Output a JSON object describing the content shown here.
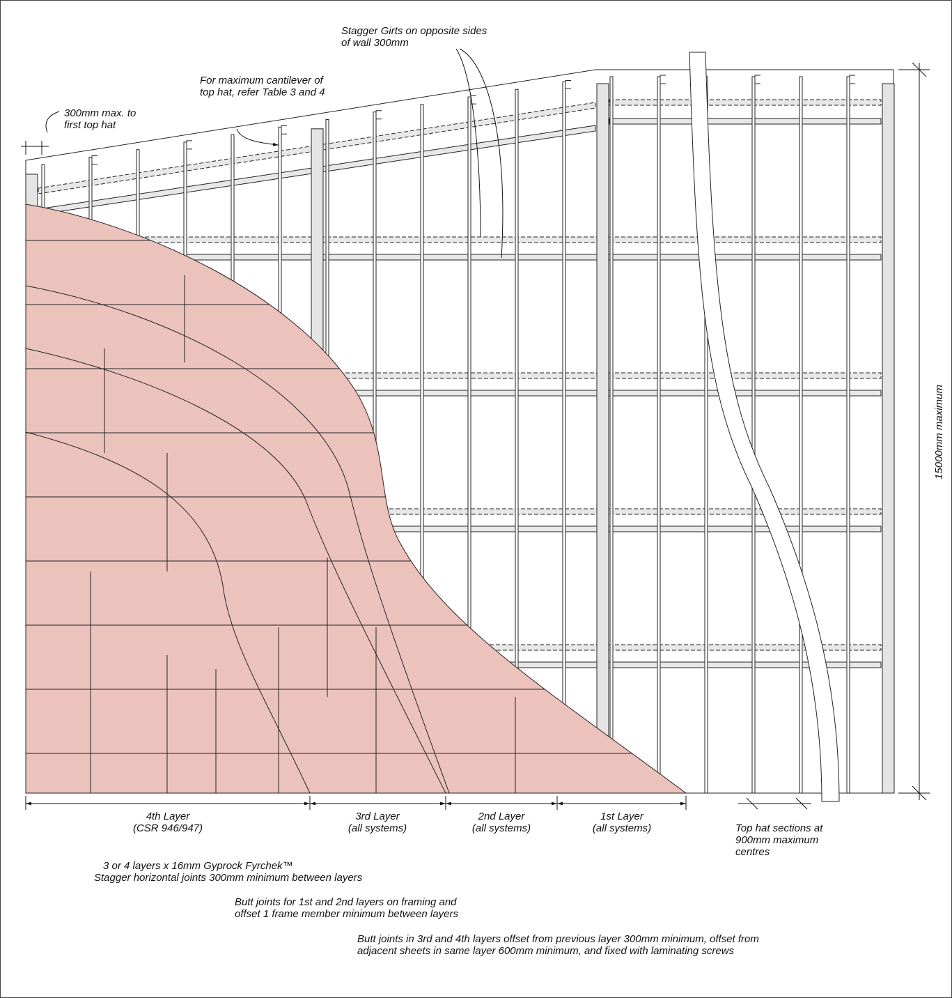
{
  "annotations": {
    "stagger_girts": [
      "Stagger Girts on opposite sides",
      "of wall 300mm"
    ],
    "cantilever": [
      "For maximum cantilever of",
      "top hat, refer Table 3 and 4"
    ],
    "first_top_hat": [
      "300mm max. to",
      "first top hat"
    ],
    "height": "15000mm maximum",
    "top_hat_centres": [
      "Top hat sections at",
      "900mm maximum",
      "centres"
    ]
  },
  "layers": [
    {
      "name": "4th Layer",
      "note": "(CSR 946/947)"
    },
    {
      "name": "3rd Layer",
      "note": "(all systems)"
    },
    {
      "name": "2nd Layer",
      "note": "(all systems)"
    },
    {
      "name": "1st Layer",
      "note": "(all systems)"
    }
  ],
  "notes": [
    [
      "3 or 4 layers x 16mm Gyprock Fyrchek™",
      "Stagger horizontal joints 300mm minimum between layers"
    ],
    [
      "Butt joints for 1st and 2nd layers on framing and",
      "offset 1 frame member minimum between layers"
    ],
    [
      "Butt joints in 3rd and 4th layers offset from previous layer 300mm minimum, offset from",
      "adjacent sheets in same layer 600mm minimum, and fixed with laminating screws"
    ]
  ]
}
